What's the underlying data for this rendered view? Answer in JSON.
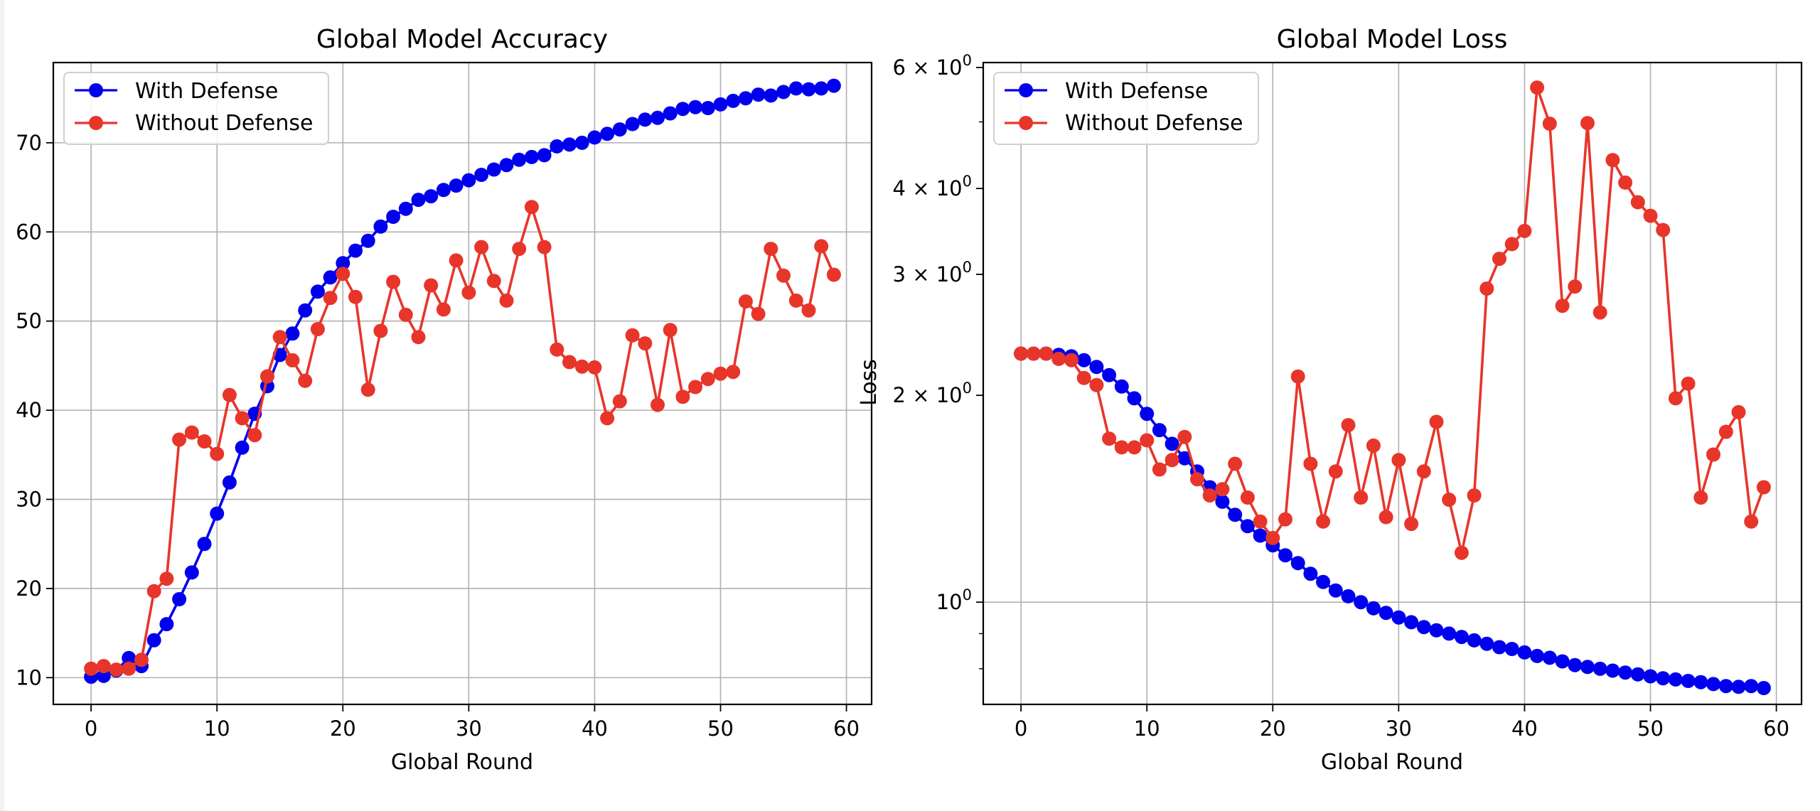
{
  "chart_data": [
    {
      "type": "line",
      "title": "Global Model Accuracy",
      "xlabel": "Global Round",
      "ylabel": "",
      "xlim": [
        -3,
        62
      ],
      "ylim": [
        7,
        79
      ],
      "y_scale": "linear",
      "grid": true,
      "legend_position": "top-left",
      "x_ticks": [
        0,
        10,
        20,
        30,
        40,
        50,
        60
      ],
      "y_ticks": [
        10,
        20,
        30,
        40,
        50,
        60,
        70
      ],
      "x": [
        0,
        1,
        2,
        3,
        4,
        5,
        6,
        7,
        8,
        9,
        10,
        11,
        12,
        13,
        14,
        15,
        16,
        17,
        18,
        19,
        20,
        21,
        22,
        23,
        24,
        25,
        26,
        27,
        28,
        29,
        30,
        31,
        32,
        33,
        34,
        35,
        36,
        37,
        38,
        39,
        40,
        41,
        42,
        43,
        44,
        45,
        46,
        47,
        48,
        49,
        50,
        51,
        52,
        53,
        54,
        55,
        56,
        57,
        58,
        59
      ],
      "series": [
        {
          "name": "With Defense",
          "color": "#0000ee",
          "values": [
            10.1,
            10.2,
            10.8,
            12.2,
            11.3,
            14.2,
            16.0,
            18.8,
            21.8,
            25.0,
            28.4,
            31.9,
            35.8,
            39.6,
            42.7,
            46.2,
            48.6,
            51.2,
            53.3,
            54.9,
            56.5,
            57.9,
            59.0,
            60.6,
            61.7,
            62.6,
            63.6,
            64.0,
            64.7,
            65.2,
            65.8,
            66.4,
            67.0,
            67.5,
            68.1,
            68.4,
            68.6,
            69.6,
            69.8,
            70.0,
            70.6,
            71.0,
            71.5,
            72.1,
            72.6,
            72.8,
            73.3,
            73.8,
            74.0,
            73.9,
            74.3,
            74.7,
            75.0,
            75.4,
            75.3,
            75.7,
            76.1,
            76.0,
            76.1,
            76.4
          ]
        },
        {
          "name": "Without Defense",
          "color": "#e8352a",
          "values": [
            11.0,
            11.3,
            10.9,
            11.0,
            12.0,
            19.7,
            21.1,
            36.7,
            37.5,
            36.5,
            35.1,
            41.7,
            39.1,
            37.2,
            43.8,
            48.2,
            45.6,
            43.3,
            49.1,
            52.6,
            55.3,
            52.7,
            42.3,
            48.9,
            54.4,
            50.7,
            48.2,
            54.0,
            51.3,
            56.8,
            53.2,
            58.3,
            54.5,
            52.3,
            58.1,
            62.8,
            58.3,
            46.8,
            45.4,
            44.9,
            44.8,
            39.1,
            41.0,
            48.4,
            47.5,
            40.6,
            49.0,
            41.5,
            42.6,
            43.5,
            44.1,
            44.3,
            52.2,
            50.8,
            58.1,
            55.1,
            52.3,
            51.2,
            58.4,
            55.2
          ]
        }
      ]
    },
    {
      "type": "line",
      "title": "Global Model Loss",
      "xlabel": "Global Round",
      "ylabel": "Loss",
      "xlim": [
        -3,
        62
      ],
      "ylim": [
        0.71,
        6.1
      ],
      "y_scale": "log",
      "grid": true,
      "legend_position": "top-left",
      "x_ticks": [
        0,
        10,
        20,
        30,
        40,
        50,
        60
      ],
      "y_major_ticks": [
        {
          "value": 1,
          "base": "10",
          "exp": "0"
        },
        {
          "value": 2,
          "base": "2 × 10",
          "exp": "0"
        },
        {
          "value": 3,
          "base": "3 × 10",
          "exp": "0"
        },
        {
          "value": 4,
          "base": "4 × 10",
          "exp": "0"
        },
        {
          "value": 6,
          "base": "6 × 10",
          "exp": "0"
        }
      ],
      "y_minor_ticks": [
        0.8,
        0.9,
        5
      ],
      "x": [
        0,
        1,
        2,
        3,
        4,
        5,
        6,
        7,
        8,
        9,
        10,
        11,
        12,
        13,
        14,
        15,
        16,
        17,
        18,
        19,
        20,
        21,
        22,
        23,
        24,
        25,
        26,
        27,
        28,
        29,
        30,
        31,
        32,
        33,
        34,
        35,
        36,
        37,
        38,
        39,
        40,
        41,
        42,
        43,
        44,
        45,
        46,
        47,
        48,
        49,
        50,
        51,
        52,
        53,
        54,
        55,
        56,
        57,
        58,
        59
      ],
      "series": [
        {
          "name": "With Defense",
          "color": "#0000ee",
          "values": [
            2.3,
            2.3,
            2.3,
            2.29,
            2.28,
            2.25,
            2.2,
            2.14,
            2.06,
            1.98,
            1.88,
            1.78,
            1.7,
            1.62,
            1.55,
            1.47,
            1.4,
            1.34,
            1.29,
            1.25,
            1.21,
            1.17,
            1.14,
            1.1,
            1.07,
            1.04,
            1.02,
            1.0,
            0.98,
            0.965,
            0.95,
            0.935,
            0.92,
            0.91,
            0.9,
            0.89,
            0.88,
            0.87,
            0.86,
            0.855,
            0.845,
            0.835,
            0.83,
            0.82,
            0.81,
            0.805,
            0.8,
            0.795,
            0.79,
            0.785,
            0.78,
            0.775,
            0.772,
            0.768,
            0.765,
            0.76,
            0.755,
            0.753,
            0.755,
            0.75
          ]
        },
        {
          "name": "Without Defense",
          "color": "#e8352a",
          "values": [
            2.3,
            2.3,
            2.3,
            2.26,
            2.25,
            2.12,
            2.07,
            1.73,
            1.68,
            1.68,
            1.72,
            1.56,
            1.61,
            1.74,
            1.51,
            1.43,
            1.46,
            1.59,
            1.42,
            1.31,
            1.24,
            1.32,
            2.13,
            1.59,
            1.31,
            1.55,
            1.81,
            1.42,
            1.69,
            1.33,
            1.61,
            1.3,
            1.55,
            1.83,
            1.41,
            1.18,
            1.43,
            2.86,
            3.16,
            3.32,
            3.47,
            5.61,
            4.97,
            2.7,
            2.88,
            4.98,
            2.64,
            4.4,
            4.08,
            3.82,
            3.65,
            3.48,
            1.98,
            2.08,
            1.42,
            1.64,
            1.77,
            1.89,
            1.31,
            1.47
          ]
        }
      ]
    }
  ]
}
